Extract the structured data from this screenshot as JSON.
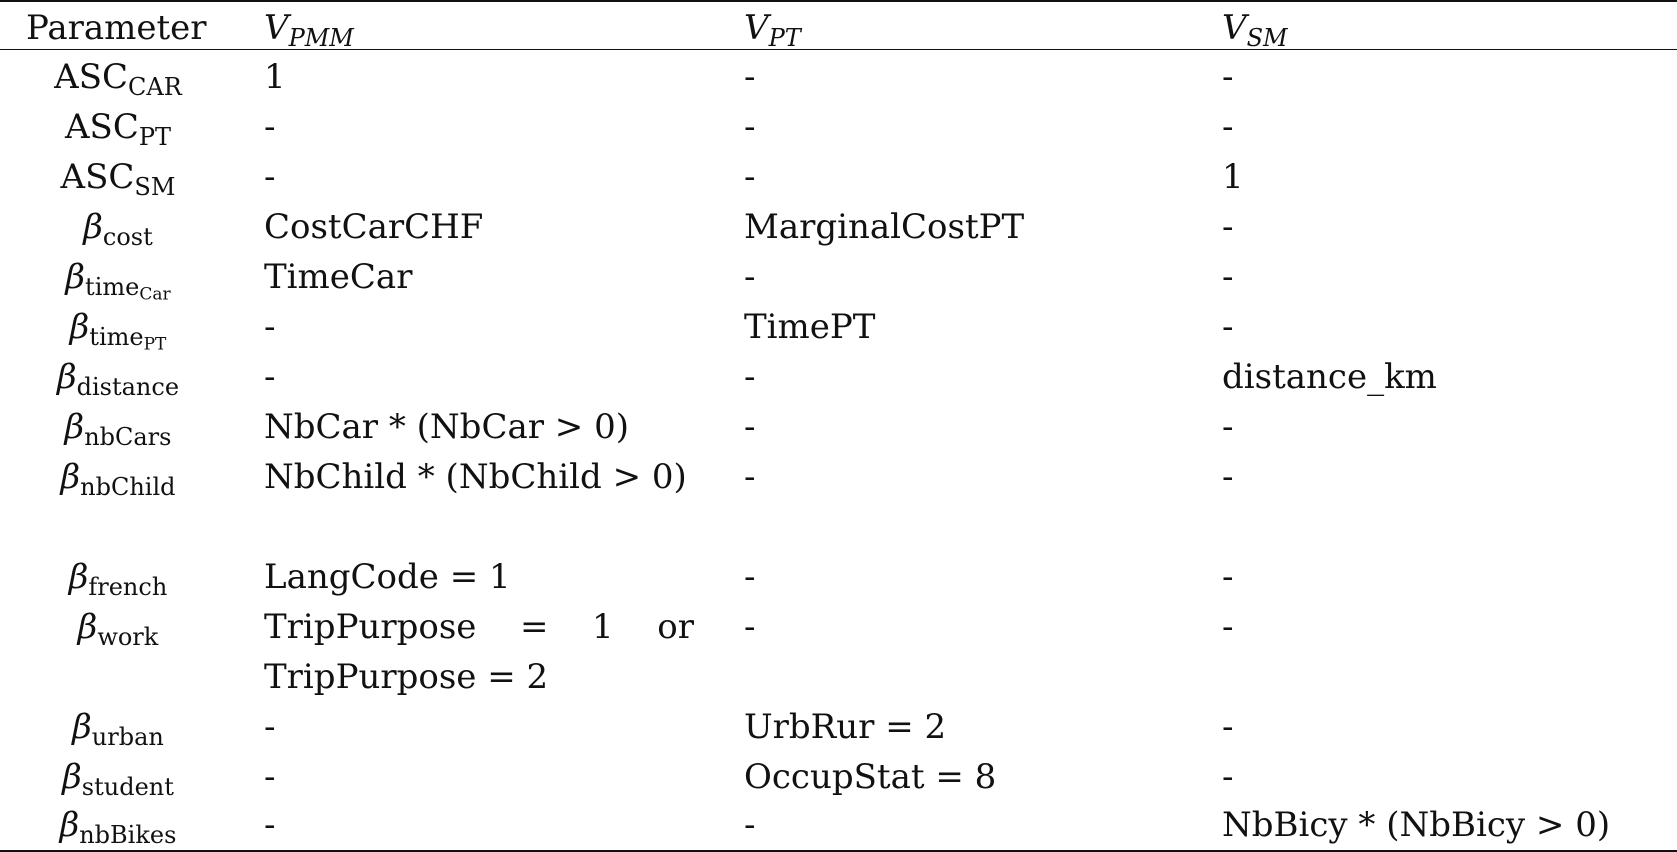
{
  "header": {
    "parameter": "Parameter",
    "cols": [
      {
        "base": "V",
        "sub": "PMM"
      },
      {
        "base": "V",
        "sub": "PT"
      },
      {
        "base": "V",
        "sub": "SM"
      }
    ]
  },
  "rows": [
    {
      "sym": "ASC",
      "sub": "CAR",
      "pmm": "1",
      "pt": "-",
      "sm": "-"
    },
    {
      "sym": "ASC",
      "sub": "PT",
      "pmm": "-",
      "pt": "-",
      "sm": "-"
    },
    {
      "sym": "ASC",
      "sub": "SM",
      "pmm": "-",
      "pt": "-",
      "sm": "1"
    },
    {
      "sym": "β",
      "sub": "cost",
      "pmm": "CostCarCHF",
      "pt": "MarginalCostPT",
      "sm": "-"
    },
    {
      "sym": "β",
      "sub": "time",
      "subsub": "Car",
      "pmm": "TimeCar",
      "pt": "-",
      "sm": "-"
    },
    {
      "sym": "β",
      "sub": "time",
      "subsub": "PT",
      "pmm": "-",
      "pt": "TimePT",
      "sm": "-"
    },
    {
      "sym": "β",
      "sub": "distance",
      "pmm": "-",
      "pt": "-",
      "sm": "distance_km"
    },
    {
      "sym": "β",
      "sub": "nbCars",
      "pmm": "NbCar * (NbCar > 0)",
      "pt": "-",
      "sm": "-"
    },
    {
      "sym": "β",
      "sub": "nbChild",
      "pmm": "NbChild * (NbChild > 0)",
      "pt": "-",
      "sm": "-"
    },
    {
      "sym": "β",
      "sub": "french",
      "pmm": "LangCode = 1",
      "pt": "-",
      "sm": "-"
    },
    {
      "sym": "β",
      "sub": "work",
      "pmm": "TripPurpose = 1 or TripPurpose = 2",
      "pt": "-",
      "sm": "-"
    },
    {
      "sym": "β",
      "sub": "urban",
      "pmm": "-",
      "pt": "UrbRur = 2",
      "sm": "-"
    },
    {
      "sym": "β",
      "sub": "student",
      "pmm": "-",
      "pt": "OccupStat = 8",
      "sm": "-"
    },
    {
      "sym": "β",
      "sub": "nbBikes",
      "pmm": "-",
      "pt": "-",
      "sm": "NbBicy * (NbBicy > 0)"
    }
  ]
}
